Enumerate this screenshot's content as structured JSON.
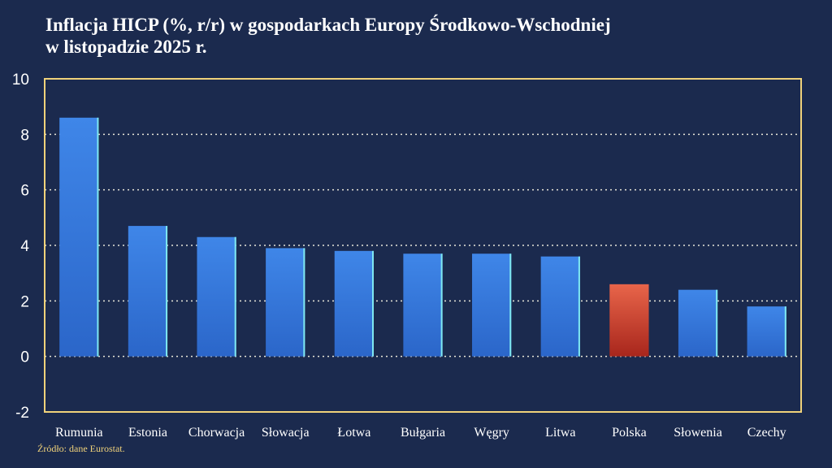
{
  "chart_data": {
    "type": "bar",
    "title_lines": [
      "Inflacja HICP (%, r/r) w gospodarkach Europy Środkowo-Wschodniej",
      "w listopadzie 2025 r."
    ],
    "categories": [
      "Rumunia",
      "Estonia",
      "Chorwacja",
      "Słowacja",
      "Łotwa",
      "Bułgaria",
      "Węgry",
      "Litwa",
      "Polska",
      "Słowenia",
      "Czechy"
    ],
    "values": [
      8.6,
      4.7,
      4.3,
      3.9,
      3.8,
      3.7,
      3.7,
      3.6,
      2.6,
      2.4,
      1.8
    ],
    "highlight_category": "Polska",
    "ylim": [
      -2,
      10
    ],
    "yticks": [
      "-2",
      "0",
      "2",
      "4",
      "6",
      "8",
      "10"
    ],
    "xlabel": "",
    "ylabel": "",
    "grid": true,
    "colors": {
      "bar": "#3f86e8",
      "bar_dark": "#2b66c9",
      "bar_edge": "#7fe8f0",
      "highlight": "#e8654a",
      "highlight_dark": "#a8261c",
      "frame": "#f0d27a",
      "grid": "#e8e6d8",
      "background": "#1b2a4e"
    }
  },
  "source": "Źródło: dane Eurostat."
}
